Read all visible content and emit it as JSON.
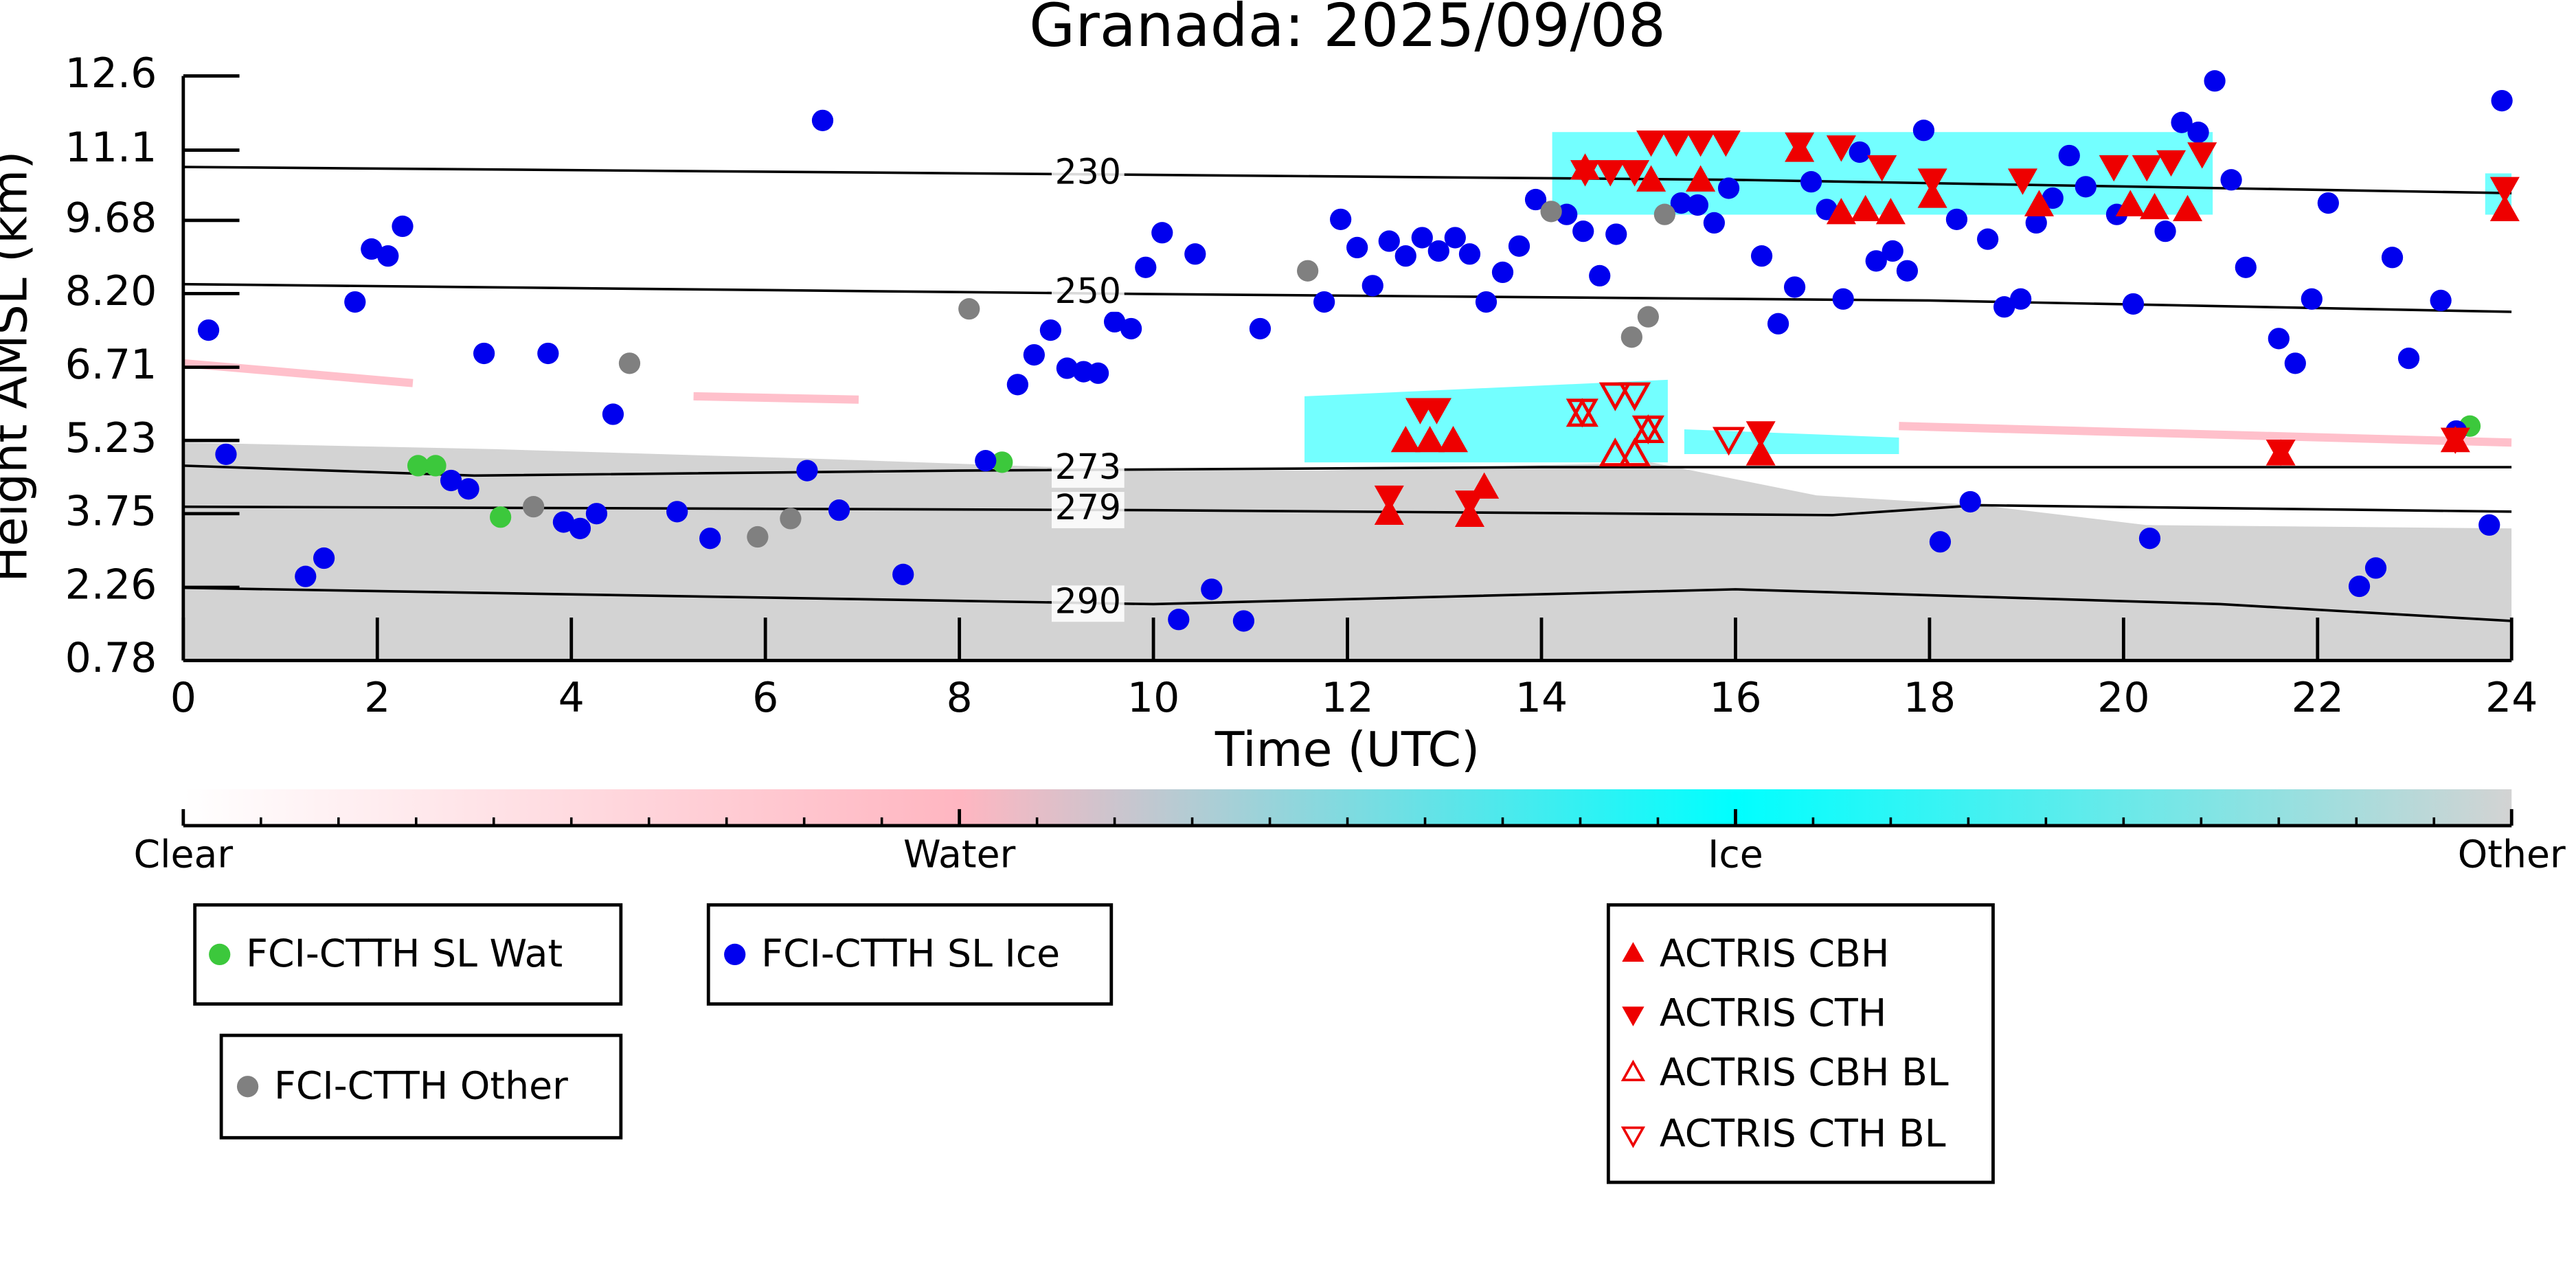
{
  "chart_data": {
    "type": "scatter",
    "title": "Granada: 2025/09/08",
    "xlabel": "Time (UTC)",
    "ylabel": "Height AMSL (km)",
    "xlim": [
      0,
      24
    ],
    "ylim": [
      0.78,
      12.6
    ],
    "xticks": [
      0,
      2,
      4,
      6,
      8,
      10,
      12,
      14,
      16,
      18,
      20,
      22,
      24
    ],
    "yticks": [
      0.78,
      2.26,
      3.75,
      5.23,
      6.71,
      {
        "value": 8.2,
        "label": "8.20"
      },
      9.68,
      11.1,
      12.6
    ],
    "series": [
      {
        "name": "FCI-CTTH SL Wat",
        "color": "#3cc83c",
        "marker": "circle",
        "x": [
          2.42,
          2.6,
          3.27,
          8.44,
          23.57
        ],
        "values": [
          4.72,
          4.72,
          3.68,
          4.79,
          5.52
        ]
      },
      {
        "name": "FCI-CTTH SL Ice",
        "color": "#0000ee",
        "marker": "circle",
        "x": [
          0.26,
          0.44,
          1.26,
          1.45,
          1.77,
          1.94,
          2.11,
          2.26,
          2.76,
          2.94,
          3.1,
          3.76,
          3.92,
          4.09,
          4.26,
          4.43,
          5.09,
          5.43,
          6.43,
          6.59,
          6.76,
          7.42,
          8.27,
          8.6,
          8.77,
          8.94,
          9.11,
          9.28,
          9.43,
          9.6,
          9.77,
          9.92,
          10.09,
          10.26,
          10.43,
          10.6,
          10.93,
          11.1,
          11.76,
          11.93,
          12.1,
          12.26,
          12.43,
          12.6,
          12.77,
          12.94,
          13.11,
          13.26,
          13.43,
          13.6,
          13.77,
          13.94,
          14.26,
          14.43,
          14.6,
          14.77,
          15.44,
          15.61,
          15.78,
          15.93,
          16.27,
          16.44,
          16.61,
          16.78,
          16.94,
          17.11,
          17.28,
          17.45,
          17.62,
          17.77,
          17.94,
          18.11,
          18.28,
          18.42,
          18.6,
          18.77,
          18.94,
          19.1,
          19.27,
          19.44,
          19.61,
          19.93,
          20.1,
          20.27,
          20.43,
          20.6,
          20.77,
          20.94,
          21.11,
          21.26,
          21.6,
          21.77,
          21.94,
          22.11,
          22.43,
          22.6,
          22.77,
          22.94,
          23.27,
          23.43,
          23.77,
          23.9
        ],
        "values": [
          7.46,
          4.95,
          2.48,
          2.85,
          8.03,
          9.1,
          8.96,
          9.56,
          4.42,
          4.25,
          6.99,
          6.99,
          3.58,
          3.45,
          3.75,
          5.76,
          3.79,
          3.25,
          4.62,
          11.7,
          3.82,
          2.52,
          4.82,
          6.36,
          6.96,
          7.46,
          6.69,
          6.62,
          6.59,
          7.63,
          7.49,
          8.73,
          9.43,
          1.61,
          9.0,
          2.22,
          1.58,
          7.49,
          8.03,
          9.7,
          9.13,
          8.36,
          9.26,
          8.96,
          9.33,
          9.06,
          9.33,
          9.0,
          8.03,
          8.63,
          9.16,
          10.1,
          9.8,
          9.46,
          8.56,
          9.4,
          10.03,
          9.99,
          9.63,
          10.33,
          8.96,
          7.59,
          8.33,
          10.46,
          9.9,
          8.09,
          11.06,
          8.86,
          9.06,
          8.66,
          11.5,
          3.18,
          9.7,
          3.99,
          9.3,
          7.93,
          8.09,
          9.63,
          10.13,
          10.99,
          10.36,
          9.8,
          7.99,
          3.25,
          9.46,
          11.66,
          11.46,
          12.5,
          10.5,
          8.73,
          7.29,
          6.79,
          8.09,
          10.03,
          2.28,
          2.65,
          8.93,
          6.89,
          8.06,
          5.42,
          3.52,
          12.1
        ]
      },
      {
        "name": "FCI-CTTH Other",
        "color": "#808080",
        "marker": "circle",
        "x": [
          3.61,
          4.6,
          5.92,
          6.26,
          8.1,
          11.59,
          14.1,
          14.93,
          15.1,
          15.27
        ],
        "values": [
          3.89,
          6.79,
          3.28,
          3.65,
          7.89,
          8.66,
          9.86,
          7.32,
          7.73,
          9.8
        ]
      },
      {
        "name": "ACTRIS CBH",
        "color": "#ee0000",
        "marker": "triangle-up",
        "x": [
          12.43,
          13.26,
          13.41,
          12.6,
          12.85,
          13.09,
          14.45,
          16.26,
          21.62,
          23.42,
          23.93,
          15.13,
          15.64,
          16.66,
          17.09,
          17.34,
          17.6,
          18.03,
          19.13,
          20.07,
          20.32,
          20.66
        ],
        "values": [
          3.72,
          3.68,
          4.25,
          5.19,
          5.19,
          5.19,
          10.7,
          4.92,
          4.92,
          5.19,
          9.86,
          10.46,
          10.46,
          11.06,
          9.8,
          9.86,
          9.8,
          10.13,
          9.96,
          9.96,
          9.9,
          9.86
        ]
      },
      {
        "name": "ACTRIS CTH",
        "color": "#ee0000",
        "marker": "triangle-down",
        "x": [
          12.43,
          13.26,
          12.75,
          12.92,
          16.26,
          21.62,
          23.42,
          23.93,
          14.45,
          14.71,
          14.96,
          15.13,
          15.39,
          15.64,
          15.9,
          16.66,
          17.09,
          17.51,
          18.03,
          18.96,
          19.9,
          20.24,
          20.49,
          20.81
        ],
        "values": [
          4.12,
          4.02,
          5.89,
          5.89,
          5.42,
          5.05,
          5.29,
          10.36,
          10.7,
          10.7,
          10.7,
          11.3,
          11.3,
          11.3,
          11.3,
          11.26,
          11.2,
          10.8,
          10.53,
          10.53,
          10.8,
          10.8,
          10.9,
          11.06
        ]
      },
      {
        "name": "ACTRIS CBH BL",
        "color": "#ee0000",
        "marker": "triangle-up-open",
        "x": [
          14.42,
          14.76,
          14.96,
          15.1
        ],
        "values": [
          5.72,
          4.92,
          4.92,
          5.39
        ]
      },
      {
        "name": "ACTRIS CTH BL",
        "color": "#ee0000",
        "marker": "triangle-down-open",
        "x": [
          14.42,
          14.76,
          14.96,
          15.1,
          15.93
        ],
        "values": [
          5.86,
          6.19,
          6.19,
          5.52,
          5.29
        ]
      }
    ],
    "contours": [
      {
        "label": "230",
        "x": [
          0,
          10,
          16,
          24
        ],
        "values": [
          10.76,
          10.6,
          10.5,
          10.23
        ]
      },
      {
        "label": "250",
        "x": [
          0,
          10,
          18,
          24
        ],
        "values": [
          8.39,
          8.19,
          8.06,
          7.83
        ]
      },
      {
        "label": "273",
        "x": [
          0,
          3,
          8,
          14,
          24
        ],
        "values": [
          4.72,
          4.52,
          4.62,
          4.69,
          4.69
        ]
      },
      {
        "label": "279",
        "x": [
          0,
          10,
          17,
          18.5,
          24
        ],
        "values": [
          3.89,
          3.82,
          3.72,
          3.92,
          3.79
        ]
      },
      {
        "label": "290",
        "x": [
          0,
          10,
          16,
          21,
          24
        ],
        "values": [
          2.25,
          1.92,
          2.22,
          1.92,
          1.58
        ]
      }
    ],
    "colorbar": {
      "labels": [
        "Clear",
        "Water",
        "Ice",
        "Other"
      ],
      "colors": [
        "#ffffff",
        "#ffb6c1",
        "#00ffff",
        "#d3d3d3"
      ]
    }
  }
}
